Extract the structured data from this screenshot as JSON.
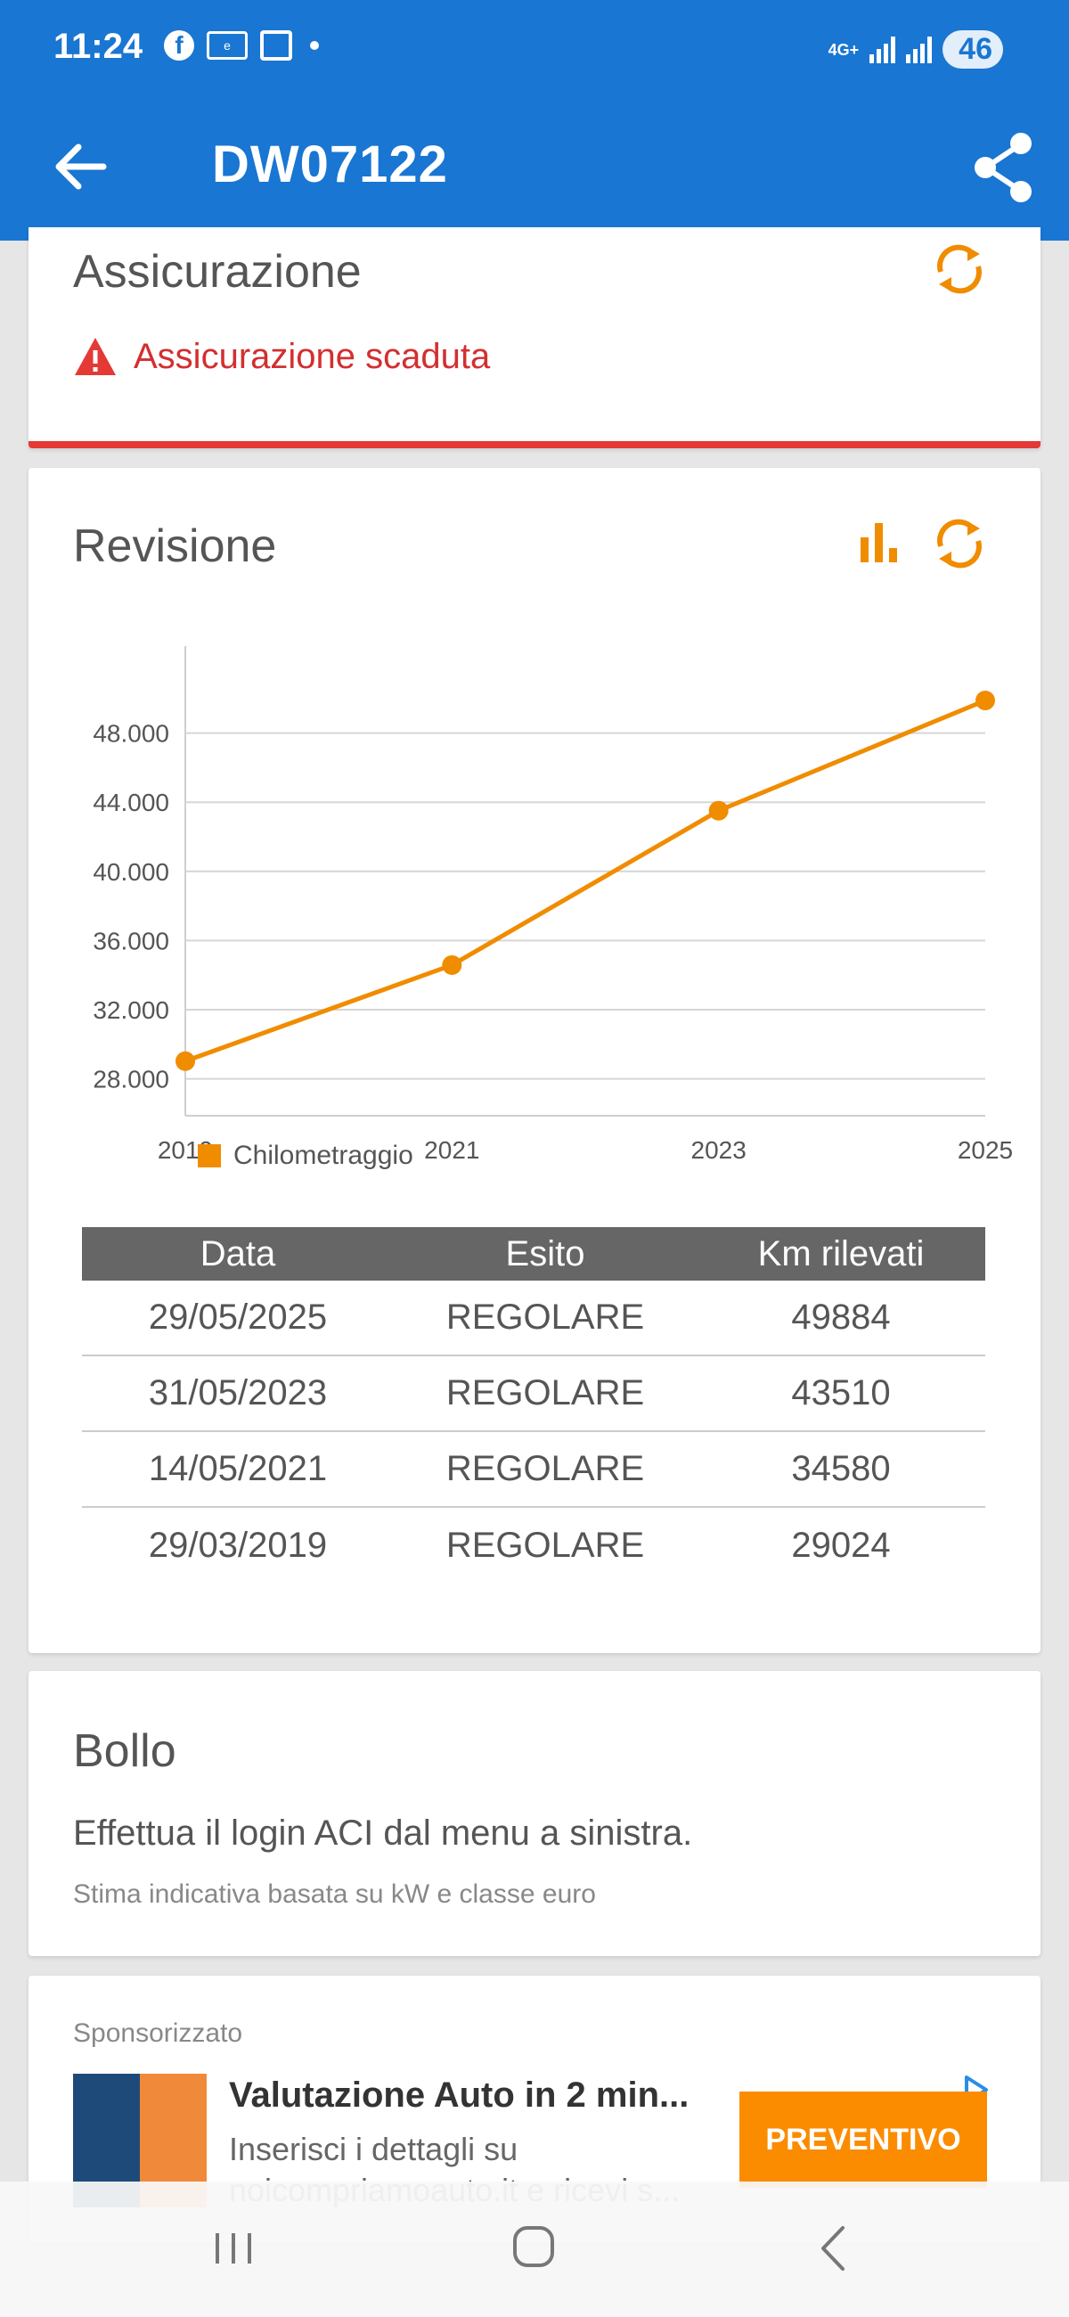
{
  "status_bar": {
    "time": "11:24",
    "network": "4G+",
    "battery": "46"
  },
  "app_bar": {
    "title": "DW07122"
  },
  "assicurazione": {
    "title": "Assicurazione",
    "alert": "Assicurazione scaduta"
  },
  "revisione": {
    "title": "Revisione",
    "table": {
      "headers": [
        "Data",
        "Esito",
        "Km rilevati"
      ],
      "rows": [
        [
          "29/05/2025",
          "REGOLARE",
          "49884"
        ],
        [
          "31/05/2023",
          "REGOLARE",
          "43510"
        ],
        [
          "14/05/2021",
          "REGOLARE",
          "34580"
        ],
        [
          "29/03/2019",
          "REGOLARE",
          "29024"
        ]
      ]
    }
  },
  "chart_data": {
    "type": "line",
    "x": [
      2019,
      2021,
      2023,
      2025
    ],
    "x_tick_labels": [
      "2019",
      "2021",
      "2023",
      "2025"
    ],
    "series": [
      {
        "name": "Chilometraggio",
        "values": [
          29024,
          34580,
          43510,
          49884
        ],
        "color": "#f08c00"
      }
    ],
    "y_ticks": [
      28000,
      32000,
      36000,
      40000,
      44000,
      48000
    ],
    "y_tick_labels": [
      "28.000",
      "32.000",
      "36.000",
      "40.000",
      "44.000",
      "48.000"
    ],
    "ylim": [
      27000,
      52000
    ],
    "xlim": [
      2019,
      2025
    ],
    "grid": true,
    "legend": "bottom-left"
  },
  "bollo": {
    "title": "Bollo",
    "text": "Effettua il login ACI dal menu a sinistra.",
    "note": "Stima indicativa basata su kW e classe euro"
  },
  "ad": {
    "label": "Sponsorizzato",
    "title": "Valutazione Auto in 2 min...",
    "description": "Inserisci i dettagli su noicompriamoauto.it e ricevi s...",
    "cta": "PREVENTIVO"
  },
  "colors": {
    "primary": "#1976d2",
    "accent": "#f08c00",
    "danger": "#d32f2f"
  }
}
